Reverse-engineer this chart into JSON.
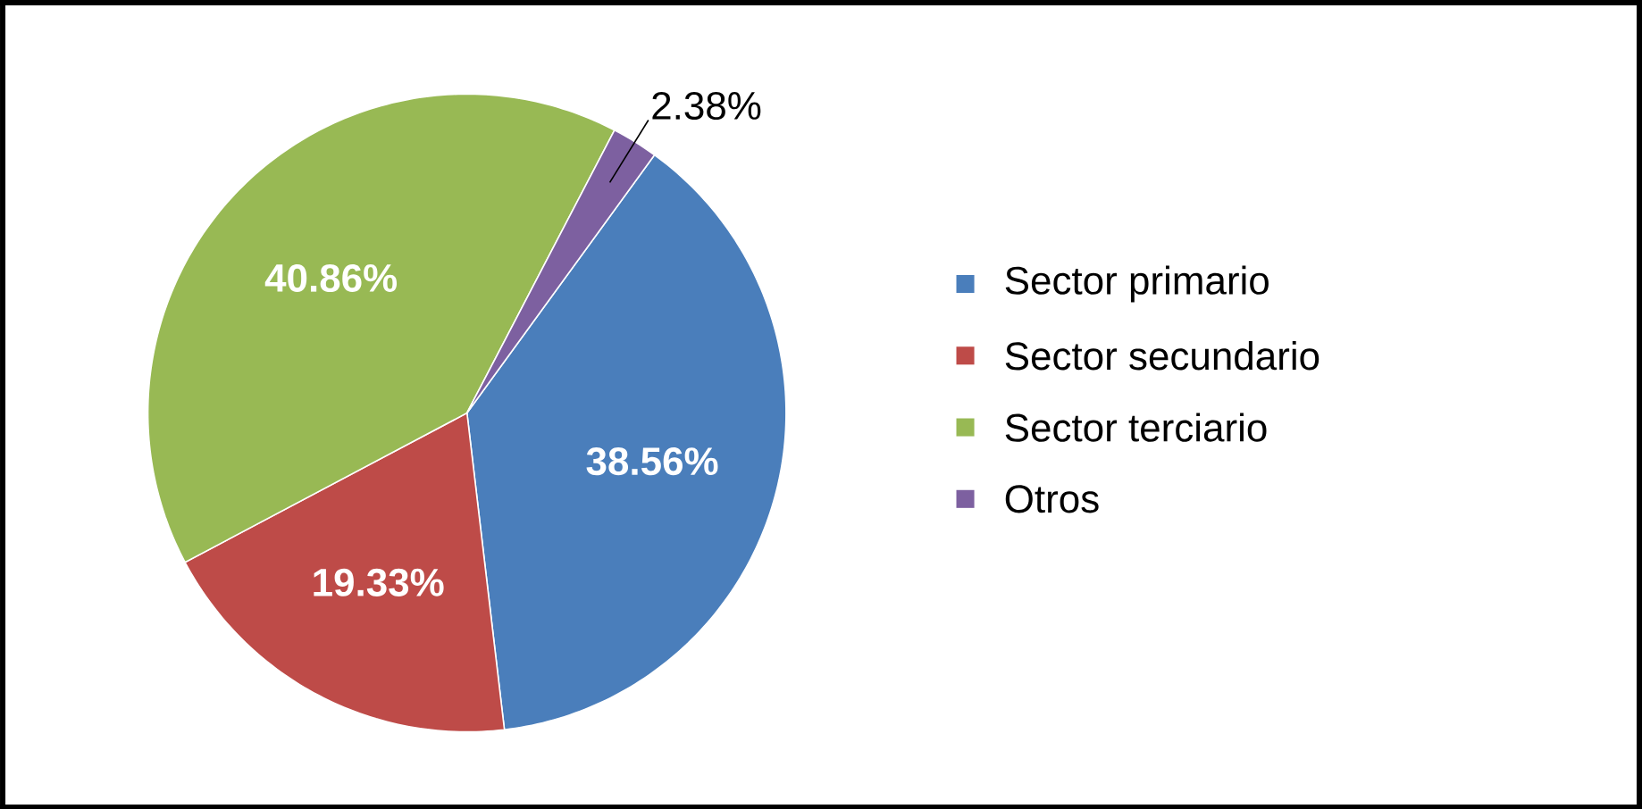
{
  "chart_data": {
    "type": "pie",
    "categories": [
      "Sector primario",
      "Sector secundario",
      "Sector terciario",
      "Otros"
    ],
    "values": [
      38.56,
      19.33,
      40.86,
      2.38
    ],
    "value_labels": [
      "38.56%",
      "19.33%",
      "40.86%",
      "2.38%"
    ],
    "colors": [
      "#4a7ebb",
      "#be4b48",
      "#98b954",
      "#7d60a0"
    ],
    "legend": "right"
  }
}
